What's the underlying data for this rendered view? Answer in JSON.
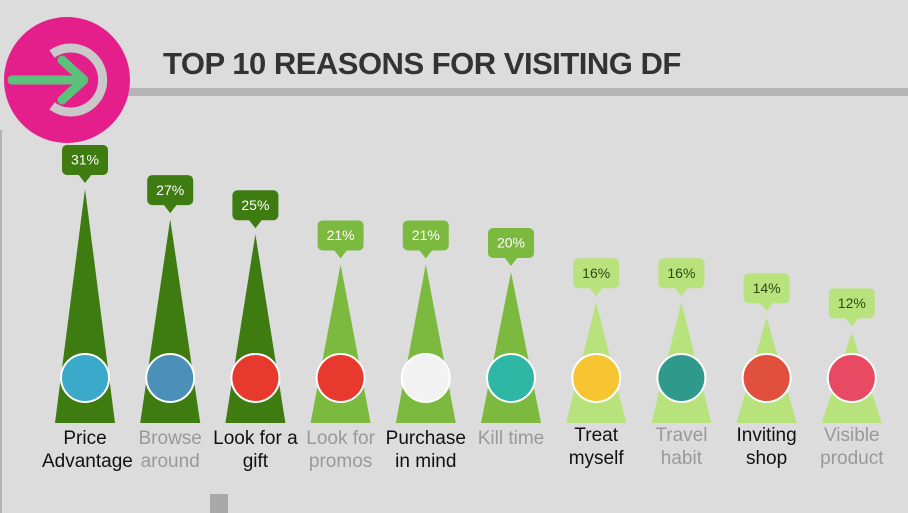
{
  "chart_data": {
    "type": "bar",
    "title": "TOP 10 REASONS FOR VISITING DF",
    "categories": [
      "Price Advantage",
      "Browse around",
      "Look for a gift",
      "Look for promos",
      "Purchase in mind",
      "Kill time",
      "Treat myself",
      "Travel habit",
      "Inviting shop",
      "Visible product"
    ],
    "values": [
      31,
      27,
      25,
      21,
      21,
      20,
      16,
      16,
      14,
      12
    ],
    "value_labels": [
      "31%",
      "27%",
      "25%",
      "21%",
      "21%",
      "20%",
      "16%",
      "16%",
      "14%",
      "12%"
    ],
    "colors": [
      "#3e7b10",
      "#3e7b10",
      "#3e7b10",
      "#7cba3f",
      "#7cba3f",
      "#7cba3f",
      "#b7e27c",
      "#b7e27c",
      "#b7e27c",
      "#b7e27c"
    ]
  }
}
